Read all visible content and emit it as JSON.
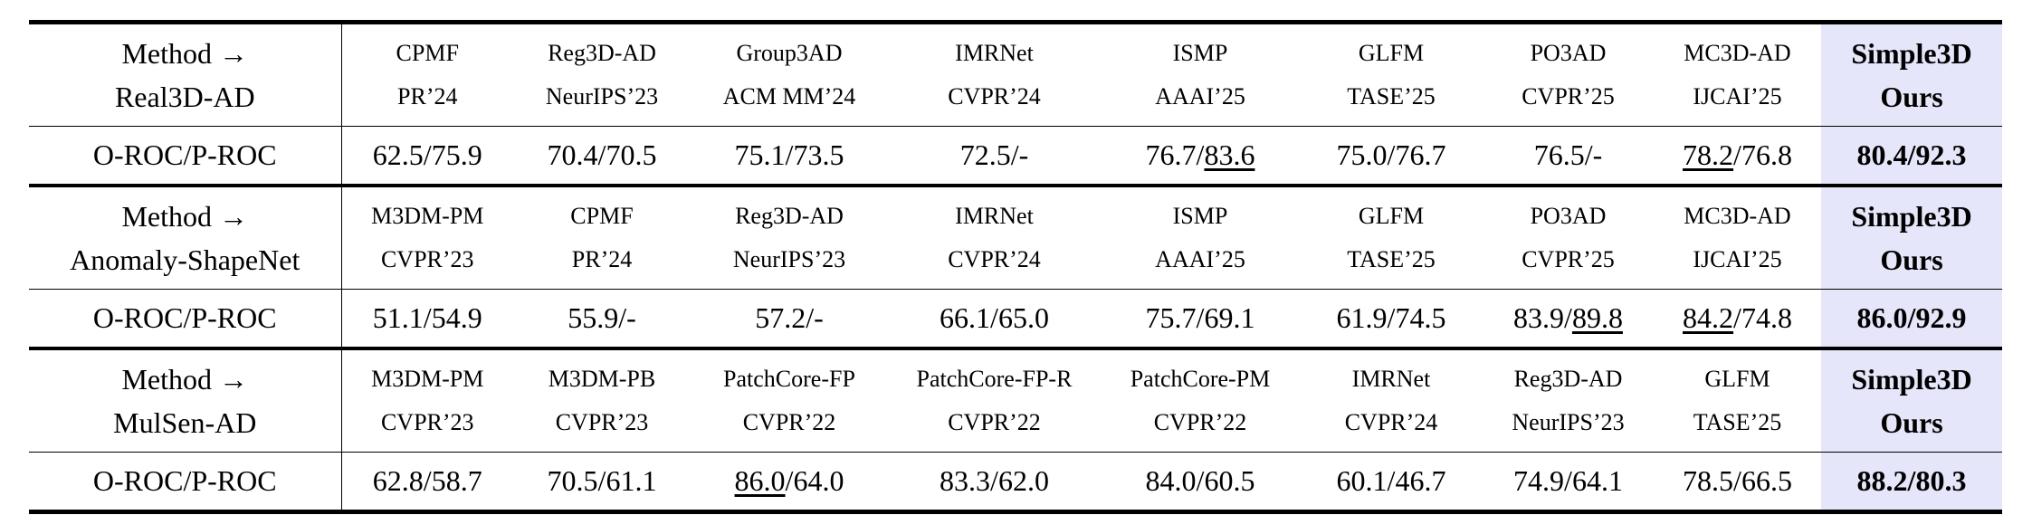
{
  "blocks": [
    {
      "label": [
        "Method →",
        "Real3D-AD"
      ],
      "methods": [
        {
          "name": "CPMF",
          "venue": "PR’24"
        },
        {
          "name": "Reg3D-AD",
          "venue": "NeurIPS’23"
        },
        {
          "name": "Group3AD",
          "venue": "ACM MM’24"
        },
        {
          "name": "IMRNet",
          "venue": "CVPR’24"
        },
        {
          "name": "ISMP",
          "venue": "AAAI’25"
        },
        {
          "name": "GLFM",
          "venue": "TASE’25"
        },
        {
          "name": "PO3AD",
          "venue": "CVPR’25"
        },
        {
          "name": "MC3D-AD",
          "venue": "IJCAI’25"
        },
        {
          "name": "Simple3D",
          "venue": "Ours"
        }
      ],
      "metric": "O-ROC/P-ROC",
      "values": [
        {
          "parts": [
            "62.5/75.9"
          ]
        },
        {
          "parts": [
            "70.4/70.5"
          ]
        },
        {
          "parts": [
            "75.1/73.5"
          ]
        },
        {
          "parts": [
            "72.5/-"
          ]
        },
        {
          "parts": [
            "76.7/",
            "83.6"
          ],
          "underline": 1
        },
        {
          "parts": [
            "75.0/76.7"
          ]
        },
        {
          "parts": [
            "76.5/-"
          ]
        },
        {
          "parts": [
            "78.2",
            "/76.8"
          ],
          "underline": 0
        },
        {
          "parts": [
            "80.4/92.3"
          ]
        }
      ]
    },
    {
      "label": [
        "Method →",
        "Anomaly-ShapeNet"
      ],
      "methods": [
        {
          "name": "M3DM-PM",
          "venue": "CVPR’23"
        },
        {
          "name": "CPMF",
          "venue": "PR’24"
        },
        {
          "name": "Reg3D-AD",
          "venue": "NeurIPS’23"
        },
        {
          "name": "IMRNet",
          "venue": "CVPR’24"
        },
        {
          "name": "ISMP",
          "venue": "AAAI’25"
        },
        {
          "name": "GLFM",
          "venue": "TASE’25"
        },
        {
          "name": "PO3AD",
          "venue": "CVPR’25"
        },
        {
          "name": "MC3D-AD",
          "venue": "IJCAI’25"
        },
        {
          "name": "Simple3D",
          "venue": "Ours"
        }
      ],
      "metric": "O-ROC/P-ROC",
      "values": [
        {
          "parts": [
            "51.1/54.9"
          ]
        },
        {
          "parts": [
            "55.9/-"
          ]
        },
        {
          "parts": [
            "57.2/-"
          ]
        },
        {
          "parts": [
            "66.1/65.0"
          ]
        },
        {
          "parts": [
            "75.7/69.1"
          ]
        },
        {
          "parts": [
            "61.9/74.5"
          ]
        },
        {
          "parts": [
            "83.9/",
            "89.8"
          ],
          "underline": 1
        },
        {
          "parts": [
            "84.2",
            "/74.8"
          ],
          "underline": 0
        },
        {
          "parts": [
            "86.0/92.9"
          ]
        }
      ]
    },
    {
      "label": [
        "Method →",
        "MulSen-AD"
      ],
      "methods": [
        {
          "name": "M3DM-PM",
          "venue": "CVPR’23"
        },
        {
          "name": "M3DM-PB",
          "venue": "CVPR’23"
        },
        {
          "name": "PatchCore-FP",
          "venue": "CVPR’22"
        },
        {
          "name": "PatchCore-FP-R",
          "venue": "CVPR’22"
        },
        {
          "name": "PatchCore-PM",
          "venue": "CVPR’22"
        },
        {
          "name": "IMRNet",
          "venue": "CVPR’24"
        },
        {
          "name": "Reg3D-AD",
          "venue": "NeurIPS’23"
        },
        {
          "name": "GLFM",
          "venue": "TASE’25"
        },
        {
          "name": "Simple3D",
          "venue": "Ours"
        }
      ],
      "metric": "O-ROC/P-ROC",
      "values": [
        {
          "parts": [
            "62.8/58.7"
          ]
        },
        {
          "parts": [
            "70.5/61.1"
          ]
        },
        {
          "parts": [
            "86.0",
            "/64.0"
          ],
          "underline": 0
        },
        {
          "parts": [
            "83.3/62.0"
          ]
        },
        {
          "parts": [
            "84.0/60.5"
          ]
        },
        {
          "parts": [
            "60.1/46.7"
          ]
        },
        {
          "parts": [
            "74.9/64.1"
          ]
        },
        {
          "parts": [
            "78.5/66.5"
          ]
        },
        {
          "parts": [
            "88.2/80.3"
          ]
        }
      ]
    }
  ]
}
